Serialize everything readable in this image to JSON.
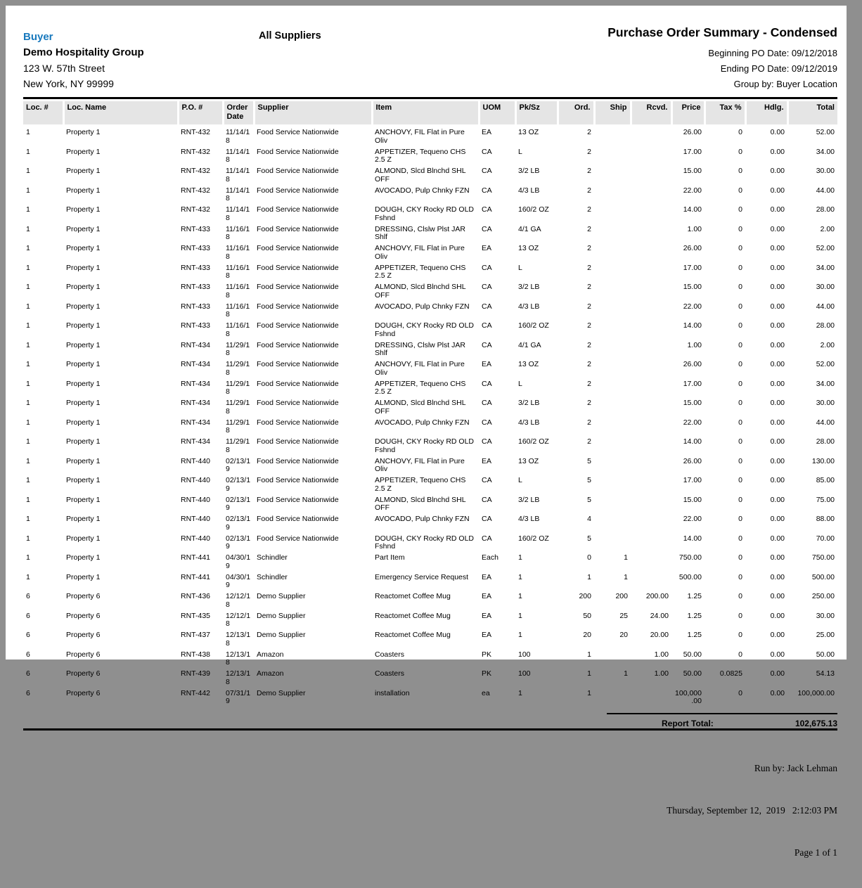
{
  "header": {
    "buyer_label": "Buyer",
    "company": "Demo Hospitality Group",
    "address_line1": "123 W. 57th Street",
    "address_line2": "New York, NY 99999",
    "suppliers_filter": "All Suppliers",
    "title": "Purchase Order Summary - Condensed",
    "beginning_po_date": "Beginning PO Date: 09/12/2018",
    "ending_po_date": "Ending PO Date: 09/12/2019",
    "group_by": "Group by: Buyer Location"
  },
  "colors": {
    "accent_blue": "#1879bd",
    "table_header_bg": "#e5e5e5",
    "frame_gray": "#8f8f8f"
  },
  "table": {
    "columns": [
      "Loc. #",
      "Loc. Name",
      "P.O. #",
      "Order Date",
      "Supplier",
      "Item",
      "UOM",
      "Pk/Sz",
      "Ord.",
      "Ship",
      "Rcvd.",
      "Price",
      "Tax %",
      "Hdlg.",
      "Total"
    ],
    "column_keys": [
      "loc-num",
      "loc-name",
      "po-num",
      "order-date",
      "supplier",
      "item",
      "uom",
      "pk-sz",
      "ord",
      "ship",
      "rcvd",
      "price",
      "tax-pct",
      "hdlg",
      "total"
    ],
    "numeric_columns_from_index": 8,
    "rows": [
      [
        "1",
        "Property 1",
        "RNT-432",
        "11/14/18",
        "Food Service Nationwide",
        "ANCHOVY, FIL Flat in Pure Oliv",
        "EA",
        "13 OZ",
        "2",
        "",
        "",
        "26.00",
        "0",
        "0.00",
        "52.00"
      ],
      [
        "1",
        "Property 1",
        "RNT-432",
        "11/14/18",
        "Food Service Nationwide",
        "APPETIZER, Tequeno CHS 2.5 Z",
        "CA",
        "L",
        "2",
        "",
        "",
        "17.00",
        "0",
        "0.00",
        "34.00"
      ],
      [
        "1",
        "Property 1",
        "RNT-432",
        "11/14/18",
        "Food Service Nationwide",
        "ALMOND, Slcd Blnchd SHL OFF",
        "CA",
        "3/2 LB",
        "2",
        "",
        "",
        "15.00",
        "0",
        "0.00",
        "30.00"
      ],
      [
        "1",
        "Property 1",
        "RNT-432",
        "11/14/18",
        "Food Service Nationwide",
        "AVOCADO, Pulp Chnky FZN",
        "CA",
        "4/3 LB",
        "2",
        "",
        "",
        "22.00",
        "0",
        "0.00",
        "44.00"
      ],
      [
        "1",
        "Property 1",
        "RNT-432",
        "11/14/18",
        "Food Service Nationwide",
        "DOUGH, CKY Rocky RD OLD Fshnd",
        "CA",
        "160/2 OZ",
        "2",
        "",
        "",
        "14.00",
        "0",
        "0.00",
        "28.00"
      ],
      [
        "1",
        "Property 1",
        "RNT-433",
        "11/16/18",
        "Food Service Nationwide",
        "DRESSING, Clslw Plst JAR Shlf",
        "CA",
        "4/1 GA",
        "2",
        "",
        "",
        "1.00",
        "0",
        "0.00",
        "2.00"
      ],
      [
        "1",
        "Property 1",
        "RNT-433",
        "11/16/18",
        "Food Service Nationwide",
        "ANCHOVY, FIL Flat in Pure Oliv",
        "EA",
        "13 OZ",
        "2",
        "",
        "",
        "26.00",
        "0",
        "0.00",
        "52.00"
      ],
      [
        "1",
        "Property 1",
        "RNT-433",
        "11/16/18",
        "Food Service Nationwide",
        "APPETIZER, Tequeno CHS 2.5 Z",
        "CA",
        "L",
        "2",
        "",
        "",
        "17.00",
        "0",
        "0.00",
        "34.00"
      ],
      [
        "1",
        "Property 1",
        "RNT-433",
        "11/16/18",
        "Food Service Nationwide",
        "ALMOND, Slcd Blnchd SHL OFF",
        "CA",
        "3/2 LB",
        "2",
        "",
        "",
        "15.00",
        "0",
        "0.00",
        "30.00"
      ],
      [
        "1",
        "Property 1",
        "RNT-433",
        "11/16/18",
        "Food Service Nationwide",
        "AVOCADO, Pulp Chnky FZN",
        "CA",
        "4/3 LB",
        "2",
        "",
        "",
        "22.00",
        "0",
        "0.00",
        "44.00"
      ],
      [
        "1",
        "Property 1",
        "RNT-433",
        "11/16/18",
        "Food Service Nationwide",
        "DOUGH, CKY Rocky RD OLD Fshnd",
        "CA",
        "160/2 OZ",
        "2",
        "",
        "",
        "14.00",
        "0",
        "0.00",
        "28.00"
      ],
      [
        "1",
        "Property 1",
        "RNT-434",
        "11/29/18",
        "Food Service Nationwide",
        "DRESSING, Clslw Plst JAR Shlf",
        "CA",
        "4/1 GA",
        "2",
        "",
        "",
        "1.00",
        "0",
        "0.00",
        "2.00"
      ],
      [
        "1",
        "Property 1",
        "RNT-434",
        "11/29/18",
        "Food Service Nationwide",
        "ANCHOVY, FIL Flat in Pure Oliv",
        "EA",
        "13 OZ",
        "2",
        "",
        "",
        "26.00",
        "0",
        "0.00",
        "52.00"
      ],
      [
        "1",
        "Property 1",
        "RNT-434",
        "11/29/18",
        "Food Service Nationwide",
        "APPETIZER, Tequeno CHS 2.5 Z",
        "CA",
        "L",
        "2",
        "",
        "",
        "17.00",
        "0",
        "0.00",
        "34.00"
      ],
      [
        "1",
        "Property 1",
        "RNT-434",
        "11/29/18",
        "Food Service Nationwide",
        "ALMOND, Slcd Blnchd SHL OFF",
        "CA",
        "3/2 LB",
        "2",
        "",
        "",
        "15.00",
        "0",
        "0.00",
        "30.00"
      ],
      [
        "1",
        "Property 1",
        "RNT-434",
        "11/29/18",
        "Food Service Nationwide",
        "AVOCADO, Pulp Chnky FZN",
        "CA",
        "4/3 LB",
        "2",
        "",
        "",
        "22.00",
        "0",
        "0.00",
        "44.00"
      ],
      [
        "1",
        "Property 1",
        "RNT-434",
        "11/29/18",
        "Food Service Nationwide",
        "DOUGH, CKY Rocky RD OLD Fshnd",
        "CA",
        "160/2 OZ",
        "2",
        "",
        "",
        "14.00",
        "0",
        "0.00",
        "28.00"
      ],
      [
        "1",
        "Property 1",
        "RNT-440",
        "02/13/19",
        "Food Service Nationwide",
        "ANCHOVY, FIL Flat in Pure Oliv",
        "EA",
        "13 OZ",
        "5",
        "",
        "",
        "26.00",
        "0",
        "0.00",
        "130.00"
      ],
      [
        "1",
        "Property 1",
        "RNT-440",
        "02/13/19",
        "Food Service Nationwide",
        "APPETIZER, Tequeno CHS 2.5 Z",
        "CA",
        "L",
        "5",
        "",
        "",
        "17.00",
        "0",
        "0.00",
        "85.00"
      ],
      [
        "1",
        "Property 1",
        "RNT-440",
        "02/13/19",
        "Food Service Nationwide",
        "ALMOND, Slcd Blnchd SHL OFF",
        "CA",
        "3/2 LB",
        "5",
        "",
        "",
        "15.00",
        "0",
        "0.00",
        "75.00"
      ],
      [
        "1",
        "Property 1",
        "RNT-440",
        "02/13/19",
        "Food Service Nationwide",
        "AVOCADO, Pulp Chnky FZN",
        "CA",
        "4/3 LB",
        "4",
        "",
        "",
        "22.00",
        "0",
        "0.00",
        "88.00"
      ],
      [
        "1",
        "Property 1",
        "RNT-440",
        "02/13/19",
        "Food Service Nationwide",
        "DOUGH, CKY Rocky RD OLD Fshnd",
        "CA",
        "160/2 OZ",
        "5",
        "",
        "",
        "14.00",
        "0",
        "0.00",
        "70.00"
      ],
      [
        "1",
        "Property 1",
        "RNT-441",
        "04/30/19",
        "Schindler",
        "Part Item",
        "Each",
        "1",
        "0",
        "1",
        "",
        "750.00",
        "0",
        "0.00",
        "750.00"
      ],
      [
        "1",
        "Property 1",
        "RNT-441",
        "04/30/19",
        "Schindler",
        "Emergency Service Request",
        "EA",
        "1",
        "1",
        "1",
        "",
        "500.00",
        "0",
        "0.00",
        "500.00"
      ],
      [
        "6",
        "Property 6",
        "RNT-436",
        "12/12/18",
        "Demo Supplier",
        "Reactomet Coffee Mug",
        "EA",
        "1",
        "200",
        "200",
        "200.00",
        "1.25",
        "0",
        "0.00",
        "250.00"
      ],
      [
        "6",
        "Property 6",
        "RNT-435",
        "12/12/18",
        "Demo Supplier",
        "Reactomet Coffee Mug",
        "EA",
        "1",
        "50",
        "25",
        "24.00",
        "1.25",
        "0",
        "0.00",
        "30.00"
      ],
      [
        "6",
        "Property 6",
        "RNT-437",
        "12/13/18",
        "Demo Supplier",
        "Reactomet Coffee Mug",
        "EA",
        "1",
        "20",
        "20",
        "20.00",
        "1.25",
        "0",
        "0.00",
        "25.00"
      ],
      [
        "6",
        "Property 6",
        "RNT-438",
        "12/13/18",
        "Amazon",
        "Coasters",
        "PK",
        "100",
        "1",
        "",
        "1.00",
        "50.00",
        "0",
        "0.00",
        "50.00"
      ],
      [
        "6",
        "Property 6",
        "RNT-439",
        "12/13/18",
        "Amazon",
        "Coasters",
        "PK",
        "100",
        "1",
        "1",
        "1.00",
        "50.00",
        "0.0825",
        "0.00",
        "54.13"
      ],
      [
        "6",
        "Property 6",
        "RNT-442",
        "07/31/19",
        "Demo Supplier",
        "installation",
        "ea",
        "1",
        "1",
        "",
        "",
        "100,000.00",
        "0",
        "0.00",
        "100,000.00"
      ]
    ]
  },
  "summary": {
    "report_total_label": "Report Total:",
    "report_total_value": "102,675.13"
  },
  "footer": {
    "run_by": "Run by: Jack Lehman",
    "datetime": "Thursday, September 12,  2019   2:12:03 PM",
    "page_info": "Page 1 of 1"
  }
}
